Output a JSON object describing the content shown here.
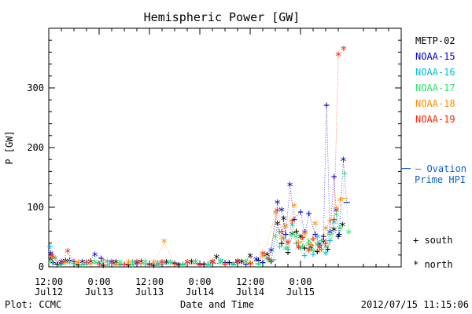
{
  "chart_data": {
    "type": "scatter",
    "title": "Hemispheric Power [GW]",
    "ylabel": "P [GW]",
    "xlabel": "Date and Time",
    "footer_left": "Plot: CCMC",
    "footer_right": "2012/07/15 11:15:06",
    "xlim": [
      0,
      84
    ],
    "ylim": [
      0,
      400
    ],
    "grid": false,
    "y_ticks": [
      0,
      100,
      200,
      300
    ],
    "x_ticks": [
      {
        "x": 0,
        "label": "12:00",
        "sub": "Jul12"
      },
      {
        "x": 12,
        "label": "0:00",
        "sub": "Jul13"
      },
      {
        "x": 24,
        "label": "12:00",
        "sub": "Jul13"
      },
      {
        "x": 36,
        "label": "0:00",
        "sub": "Jul14"
      },
      {
        "x": 48,
        "label": "12:00",
        "sub": "Jul14"
      },
      {
        "x": 60,
        "label": "0:00",
        "sub": "Jul15"
      }
    ],
    "legend_placement": "right",
    "series": [
      {
        "name": "METP-02",
        "color": "#000000",
        "points": [
          [
            0.5,
            10,
            "*"
          ],
          [
            2,
            5,
            "+"
          ],
          [
            4,
            7,
            "*"
          ],
          [
            7,
            4,
            "+"
          ],
          [
            10,
            6,
            "*"
          ],
          [
            13,
            3,
            "+"
          ],
          [
            16,
            5,
            "*"
          ],
          [
            19,
            4,
            "+"
          ],
          [
            22,
            6,
            "*"
          ],
          [
            25,
            3,
            "+"
          ],
          [
            28,
            5,
            "*"
          ],
          [
            31,
            4,
            "+"
          ],
          [
            34,
            6,
            "*"
          ],
          [
            37,
            5,
            "+"
          ],
          [
            40,
            14,
            "*"
          ],
          [
            43,
            8,
            "+"
          ],
          [
            46,
            6,
            "*"
          ],
          [
            48,
            16,
            "*"
          ],
          [
            50,
            12,
            "+"
          ],
          [
            52,
            18,
            "*"
          ],
          [
            53,
            10,
            "+"
          ],
          [
            54.5,
            70,
            "*"
          ],
          [
            55.5,
            40,
            "+"
          ],
          [
            56,
            78,
            "*"
          ],
          [
            57,
            25,
            "+"
          ],
          [
            58,
            52,
            "*"
          ],
          [
            59,
            60,
            "+"
          ],
          [
            60,
            48,
            "*"
          ],
          [
            61,
            32,
            "+"
          ],
          [
            62.5,
            30,
            "*"
          ],
          [
            64,
            26,
            "+"
          ],
          [
            65.5,
            40,
            "*"
          ],
          [
            66.5,
            30,
            "+"
          ],
          [
            68,
            60,
            "*"
          ],
          [
            69,
            52,
            "+"
          ],
          [
            70,
            68,
            "*"
          ]
        ]
      },
      {
        "name": "NOAA-15",
        "color": "#0000cc",
        "points": [
          [
            0.5,
            20,
            "*"
          ],
          [
            1,
            8,
            "+"
          ],
          [
            3,
            6,
            "*"
          ],
          [
            5,
            12,
            "+"
          ],
          [
            8,
            6,
            "*"
          ],
          [
            11,
            18,
            "*"
          ],
          [
            12.5,
            15,
            "+"
          ],
          [
            15,
            6,
            "*"
          ],
          [
            18,
            5,
            "+"
          ],
          [
            21,
            4,
            "*"
          ],
          [
            24,
            6,
            "+"
          ],
          [
            27,
            5,
            "*"
          ],
          [
            30,
            7,
            "+"
          ],
          [
            33,
            5,
            "*"
          ],
          [
            36,
            6,
            "+"
          ],
          [
            39,
            5,
            "*"
          ],
          [
            42,
            8,
            "+"
          ],
          [
            45,
            6,
            "*"
          ],
          [
            47,
            5,
            "+"
          ],
          [
            49.5,
            10,
            "*"
          ],
          [
            51,
            8,
            "+"
          ],
          [
            53,
            25,
            "*"
          ],
          [
            54.5,
            105,
            "*"
          ],
          [
            55.5,
            93,
            "*"
          ],
          [
            56.5,
            55,
            "+"
          ],
          [
            57.5,
            135,
            "*"
          ],
          [
            58.5,
            80,
            "+"
          ],
          [
            60,
            93,
            "+"
          ],
          [
            61,
            55,
            "*"
          ],
          [
            62,
            90,
            "+"
          ],
          [
            63.5,
            55,
            "+"
          ],
          [
            64.5,
            35,
            "*"
          ],
          [
            65.5,
            52,
            "+"
          ],
          [
            66.2,
            272,
            "+"
          ],
          [
            67,
            55,
            "*"
          ],
          [
            68,
            152,
            "+"
          ],
          [
            68.5,
            92,
            "*"
          ],
          [
            69.2,
            55,
            "+"
          ],
          [
            70.2,
            177,
            "*"
          ],
          [
            71,
            108,
            "-"
          ]
        ]
      },
      {
        "name": "NOAA-16",
        "color": "#00c0d8",
        "points": [
          [
            0.3,
            35,
            "+"
          ],
          [
            1.5,
            12,
            "*"
          ],
          [
            3,
            5,
            "+"
          ],
          [
            6,
            4,
            "*"
          ],
          [
            9,
            5,
            "+"
          ],
          [
            12,
            8,
            "-"
          ],
          [
            14,
            6,
            "*"
          ],
          [
            17,
            4,
            "+"
          ],
          [
            20,
            5,
            "*"
          ],
          [
            23,
            6,
            "+"
          ],
          [
            26,
            4,
            "*"
          ],
          [
            29,
            8,
            "-"
          ],
          [
            32,
            5,
            "+"
          ],
          [
            35,
            6,
            "*"
          ],
          [
            38,
            5,
            "+"
          ],
          [
            41,
            7,
            "*"
          ],
          [
            44,
            5,
            "+"
          ],
          [
            47,
            6,
            "*"
          ],
          [
            50,
            6,
            "+"
          ],
          [
            52,
            12,
            "*"
          ],
          [
            53.5,
            12,
            "-"
          ],
          [
            55,
            60,
            "+"
          ],
          [
            56,
            45,
            "*"
          ],
          [
            57,
            30,
            "+"
          ],
          [
            58,
            68,
            "*"
          ],
          [
            59,
            40,
            "+"
          ],
          [
            60,
            28,
            "*"
          ],
          [
            61,
            20,
            "+"
          ],
          [
            62,
            35,
            "*"
          ],
          [
            63,
            22,
            "+"
          ],
          [
            64,
            48,
            "*"
          ],
          [
            65,
            30,
            "+"
          ],
          [
            66,
            20,
            "*"
          ],
          [
            67,
            45,
            "+"
          ],
          [
            68,
            72,
            "*"
          ]
        ]
      },
      {
        "name": "NOAA-17",
        "color": "#30e070",
        "points": [
          [
            0.5,
            6,
            "*"
          ],
          [
            2.5,
            3,
            "+"
          ],
          [
            5,
            5,
            "*"
          ],
          [
            8,
            4,
            "+"
          ],
          [
            11,
            6,
            "*"
          ],
          [
            14,
            3,
            "+"
          ],
          [
            17,
            5,
            "*"
          ],
          [
            20,
            4,
            "+"
          ],
          [
            23,
            6,
            "*"
          ],
          [
            26,
            3,
            "+"
          ],
          [
            29,
            5,
            "*"
          ],
          [
            32,
            4,
            "+"
          ],
          [
            35,
            6,
            "*"
          ],
          [
            38,
            3,
            "+"
          ],
          [
            41,
            5,
            "*"
          ],
          [
            44,
            4,
            "+"
          ],
          [
            47,
            6,
            "*"
          ],
          [
            50,
            5,
            "+"
          ],
          [
            52.5,
            8,
            "*"
          ],
          [
            54,
            48,
            "*"
          ],
          [
            55,
            35,
            "+"
          ],
          [
            56.5,
            28,
            "*"
          ],
          [
            58,
            55,
            "+"
          ],
          [
            59,
            48,
            "*"
          ],
          [
            60.5,
            35,
            "+"
          ],
          [
            62,
            40,
            "*"
          ],
          [
            63,
            28,
            "+"
          ],
          [
            64,
            35,
            "*"
          ],
          [
            65,
            45,
            "+"
          ],
          [
            66,
            30,
            "*"
          ],
          [
            67,
            55,
            "+"
          ],
          [
            68.5,
            85,
            "*"
          ],
          [
            69.5,
            62,
            "*"
          ],
          [
            70.5,
            157,
            "+"
          ],
          [
            71.5,
            55,
            "*"
          ]
        ]
      },
      {
        "name": "NOAA-18",
        "color": "#ff8c00",
        "points": [
          [
            1,
            12,
            "*"
          ],
          [
            4,
            8,
            "+"
          ],
          [
            7,
            5,
            "*"
          ],
          [
            10,
            6,
            "+"
          ],
          [
            13,
            8,
            "*"
          ],
          [
            16,
            4,
            "+"
          ],
          [
            19,
            5,
            "*"
          ],
          [
            22,
            6,
            "+"
          ],
          [
            25,
            5,
            "*"
          ],
          [
            27.5,
            40,
            "*"
          ],
          [
            30,
            6,
            "+"
          ],
          [
            33,
            5,
            "*"
          ],
          [
            36,
            4,
            "+"
          ],
          [
            39,
            6,
            "*"
          ],
          [
            42,
            5,
            "+"
          ],
          [
            45,
            7,
            "*"
          ],
          [
            48,
            8,
            "+"
          ],
          [
            51,
            15,
            "*"
          ],
          [
            54,
            88,
            "*"
          ],
          [
            55.5,
            48,
            "+"
          ],
          [
            56.5,
            65,
            "*"
          ],
          [
            58.5,
            100,
            "*"
          ],
          [
            59.5,
            42,
            "+"
          ],
          [
            61,
            52,
            "*"
          ],
          [
            62.5,
            38,
            "+"
          ],
          [
            63.5,
            70,
            "*"
          ],
          [
            64.5,
            28,
            "+"
          ],
          [
            66,
            62,
            "*"
          ],
          [
            67,
            78,
            "+"
          ],
          [
            68.5,
            95,
            "*"
          ],
          [
            69.5,
            110,
            "*"
          ],
          [
            70.5,
            115,
            "-"
          ]
        ]
      },
      {
        "name": "NOAA-19",
        "color": "#ff2000",
        "points": [
          [
            0.8,
            16,
            "*"
          ],
          [
            3,
            7,
            "+"
          ],
          [
            4.5,
            24,
            "*"
          ],
          [
            6,
            10,
            "+"
          ],
          [
            9,
            5,
            "*"
          ],
          [
            12,
            6,
            "+"
          ],
          [
            15,
            4,
            "*"
          ],
          [
            18,
            5,
            "+"
          ],
          [
            21,
            6,
            "*"
          ],
          [
            24,
            4,
            "+"
          ],
          [
            27,
            5,
            "*"
          ],
          [
            30,
            6,
            "+"
          ],
          [
            33,
            5,
            "*"
          ],
          [
            36,
            4,
            "+"
          ],
          [
            39,
            6,
            "*"
          ],
          [
            42,
            5,
            "+"
          ],
          [
            45,
            7,
            "*"
          ],
          [
            48,
            6,
            "+"
          ],
          [
            51,
            20,
            "*"
          ],
          [
            52.5,
            14,
            "+"
          ],
          [
            54.5,
            92,
            "*"
          ],
          [
            55.5,
            60,
            "+"
          ],
          [
            57,
            38,
            "*"
          ],
          [
            58,
            78,
            "+"
          ],
          [
            59.5,
            30,
            "*"
          ],
          [
            60.5,
            50,
            "+"
          ],
          [
            62,
            25,
            "*"
          ],
          [
            63,
            48,
            "+"
          ],
          [
            64.5,
            30,
            "*"
          ],
          [
            66,
            40,
            "+"
          ],
          [
            68,
            80,
            "+"
          ],
          [
            69,
            353,
            "*"
          ],
          [
            70.3,
            363,
            "*"
          ]
        ]
      }
    ],
    "ovation": {
      "name": "Ovation Prime HPI",
      "label_line1": "– Ovation",
      "label_line2": "Prime HPI",
      "color": "#1060c0",
      "value": 165
    },
    "symbol_legend": [
      {
        "symbol": "+",
        "label": "south"
      },
      {
        "symbol": "*",
        "label": "north"
      }
    ]
  }
}
